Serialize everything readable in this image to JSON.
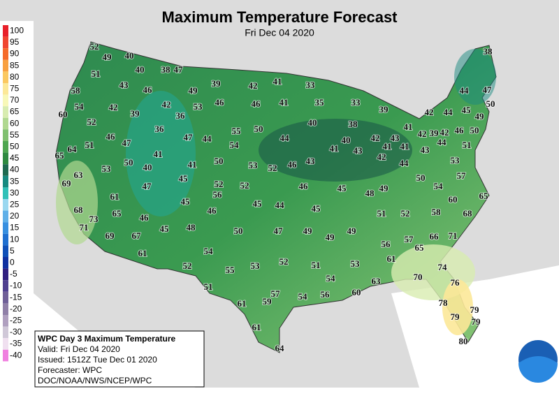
{
  "header": {
    "title": "Maximum Temperature Forecast",
    "subtitle": "Fri Dec 04 2020"
  },
  "legend": [
    {
      "label": 100,
      "color": "#e8202a"
    },
    {
      "label": 95,
      "color": "#f04530"
    },
    {
      "label": 90,
      "color": "#f56a2a"
    },
    {
      "label": 85,
      "color": "#f8a040"
    },
    {
      "label": 80,
      "color": "#fbc860"
    },
    {
      "label": 75,
      "color": "#fce898"
    },
    {
      "label": 70,
      "color": "#f8f8b8"
    },
    {
      "label": 65,
      "color": "#d8ecb0"
    },
    {
      "label": 60,
      "color": "#b0d890"
    },
    {
      "label": 55,
      "color": "#80c070"
    },
    {
      "label": 50,
      "color": "#4ea650"
    },
    {
      "label": 45,
      "color": "#2e8a40"
    },
    {
      "label": 40,
      "color": "#1e6a50"
    },
    {
      "label": 35,
      "color": "#168a80"
    },
    {
      "label": 30,
      "color": "#30c0b8"
    },
    {
      "label": 25,
      "color": "#9ad8f0"
    },
    {
      "label": 20,
      "color": "#60b0e8"
    },
    {
      "label": 15,
      "color": "#3890e0"
    },
    {
      "label": 10,
      "color": "#2070d0"
    },
    {
      "label": 5,
      "color": "#1050b8"
    },
    {
      "label": 0,
      "color": "#1030a0"
    },
    {
      "label": -5,
      "color": "#302080"
    },
    {
      "label": -10,
      "color": "#504090"
    },
    {
      "label": -15,
      "color": "#706098"
    },
    {
      "label": -20,
      "color": "#9080a8"
    },
    {
      "label": -25,
      "color": "#b0a0c0"
    },
    {
      "label": -30,
      "color": "#d0c8d8"
    },
    {
      "label": -35,
      "color": "#f0e0f0"
    },
    {
      "label": -40,
      "color": "#f080e0"
    }
  ],
  "stations": [
    52,
    49,
    40,
    40,
    38,
    47,
    51,
    43,
    46,
    49,
    39,
    42,
    41,
    33,
    58,
    54,
    42,
    39,
    42,
    53,
    46,
    46,
    41,
    35,
    33,
    39,
    38,
    44,
    47,
    60,
    52,
    36,
    36,
    55,
    50,
    40,
    38,
    42,
    44,
    45,
    50,
    49,
    46,
    47,
    51,
    47,
    44,
    54,
    44,
    40,
    42,
    43,
    41,
    42,
    39,
    42,
    46,
    50,
    64,
    65,
    41,
    41,
    43,
    41,
    43,
    44,
    51,
    50,
    40,
    41,
    50,
    53,
    52,
    46,
    43,
    53,
    63,
    41,
    42,
    44,
    53,
    69,
    47,
    45,
    52,
    52,
    46,
    45,
    48,
    49,
    50,
    54,
    57,
    56,
    45,
    46,
    45,
    44,
    45,
    61,
    68,
    73,
    65,
    46,
    51,
    52,
    58,
    60,
    65,
    68,
    71,
    69,
    67,
    45,
    48,
    50,
    47,
    49,
    49,
    49,
    56,
    57,
    66,
    71,
    65,
    61,
    54,
    61,
    52,
    55,
    53,
    52,
    51,
    53,
    74,
    51,
    54,
    70,
    63,
    76,
    57,
    54,
    56,
    60,
    61,
    59,
    78,
    79,
    79,
    79,
    61,
    80,
    64
  ],
  "info_box": {
    "lines": [
      "WPC Day 3 Maximum Temperature",
      "Valid: Fri Dec 04 2020",
      "Issued: 1512Z Tue Dec 01 2020",
      "Forecaster: WPC",
      "DOC/NOAA/NWS/NCEP/WPC"
    ]
  }
}
